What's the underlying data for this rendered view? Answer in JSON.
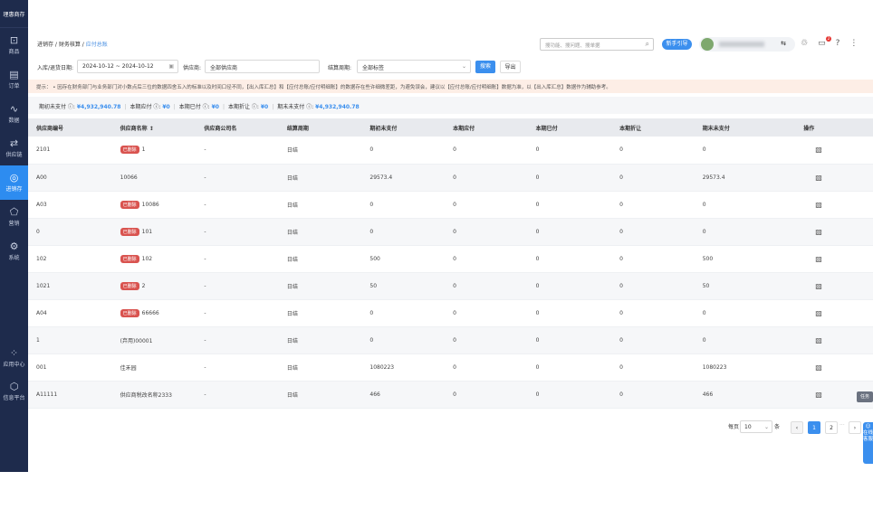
{
  "sidebar": {
    "logo": "理惠商存",
    "items": [
      {
        "label": "商品",
        "icon": "bag-icon"
      },
      {
        "label": "订单",
        "icon": "order-icon"
      },
      {
        "label": "数据",
        "icon": "chart-icon"
      },
      {
        "label": "供应链",
        "icon": "exchange-icon"
      },
      {
        "label": "进销存",
        "icon": "inventory-icon",
        "active": true
      },
      {
        "label": "营销",
        "icon": "tag-icon"
      },
      {
        "label": "系统",
        "icon": "gear-icon"
      }
    ],
    "bottom": [
      {
        "label": "应用中心",
        "icon": "apps-icon"
      },
      {
        "label": "信息平台",
        "icon": "cube-icon"
      }
    ]
  },
  "breadcrumb": [
    "进销存",
    "财务核算",
    "应付总账"
  ],
  "header": {
    "search_placeholder": "搜功能、搜问题、搜单据",
    "guide": "新手引导",
    "notifications": "2"
  },
  "filters": {
    "date_label": "入库/退货日期:",
    "date_value": "2024-10-12 ~ 2024-10-12",
    "supplier_label": "供应商:",
    "supplier_value": "全部供应商",
    "period_label": "结算周期:",
    "period_value": "全部标签",
    "search_btn": "搜索",
    "export_btn": "导出"
  },
  "notice": "提示： • 因存在财务部门与业务部门对小数点后三位的数据四舍五入的标准以及时间口径不同，【出入库汇总】和【应付总账/应付明细账】的数据存在些许细微差距，为避免误会，建议以【应付总账/应付明细账】数据为准，以【出入库汇总】数据作为辅助参考。",
  "summary": [
    {
      "label": "期初未支付 ⓘ:",
      "value": "¥4,932,940.78"
    },
    {
      "label": "本期应付 ⓘ:",
      "value": "¥0"
    },
    {
      "label": "本期已付 ⓘ:",
      "value": "¥0"
    },
    {
      "label": "本期折让 ⓘ:",
      "value": "¥0"
    },
    {
      "label": "期末未支付 ⓘ:",
      "value": "¥4,932,940.78"
    }
  ],
  "table": {
    "columns": [
      "供应商编号",
      "供应商名称 ↕",
      "供应商公司名",
      "结算周期",
      "期初未支付",
      "本期应付",
      "本期已付",
      "本期折让",
      "期末未支付",
      "操作"
    ],
    "deleted_tag": "已删除",
    "rows": [
      [
        "2101",
        true,
        "1",
        "-",
        "日结",
        "0",
        "0",
        "0",
        "0",
        "0"
      ],
      [
        "A00",
        false,
        "10066",
        "-",
        "日结",
        "29573.4",
        "0",
        "0",
        "0",
        "29573.4"
      ],
      [
        "A03",
        true,
        "10086",
        "-",
        "日结",
        "0",
        "0",
        "0",
        "0",
        "0"
      ],
      [
        "0",
        true,
        "101",
        "-",
        "日结",
        "0",
        "0",
        "0",
        "0",
        "0"
      ],
      [
        "102",
        true,
        "102",
        "-",
        "日结",
        "500",
        "0",
        "0",
        "0",
        "500"
      ],
      [
        "1021",
        true,
        "2",
        "-",
        "日结",
        "50",
        "0",
        "0",
        "0",
        "50"
      ],
      [
        "A04",
        true,
        "66666",
        "-",
        "日结",
        "0",
        "0",
        "0",
        "0",
        "0"
      ],
      [
        "1",
        false,
        "(弃用)00001",
        "-",
        "日结",
        "0",
        "0",
        "0",
        "0",
        "0"
      ],
      [
        "001",
        false,
        "佳禾园",
        "-",
        "日结",
        "1080223",
        "0",
        "0",
        "0",
        "1080223"
      ],
      [
        "A11111",
        false,
        "供应商税改名称2333",
        "-",
        "日结",
        "466",
        "0",
        "0",
        "0",
        "466"
      ]
    ]
  },
  "pagination": {
    "per_page_label": "每页",
    "per_page": "10",
    "unit": "条",
    "pages": [
      "1",
      "2"
    ],
    "current": "1",
    "ellipsis": "···"
  },
  "floats": {
    "task": "任务",
    "service": "☺ 在线客服"
  }
}
